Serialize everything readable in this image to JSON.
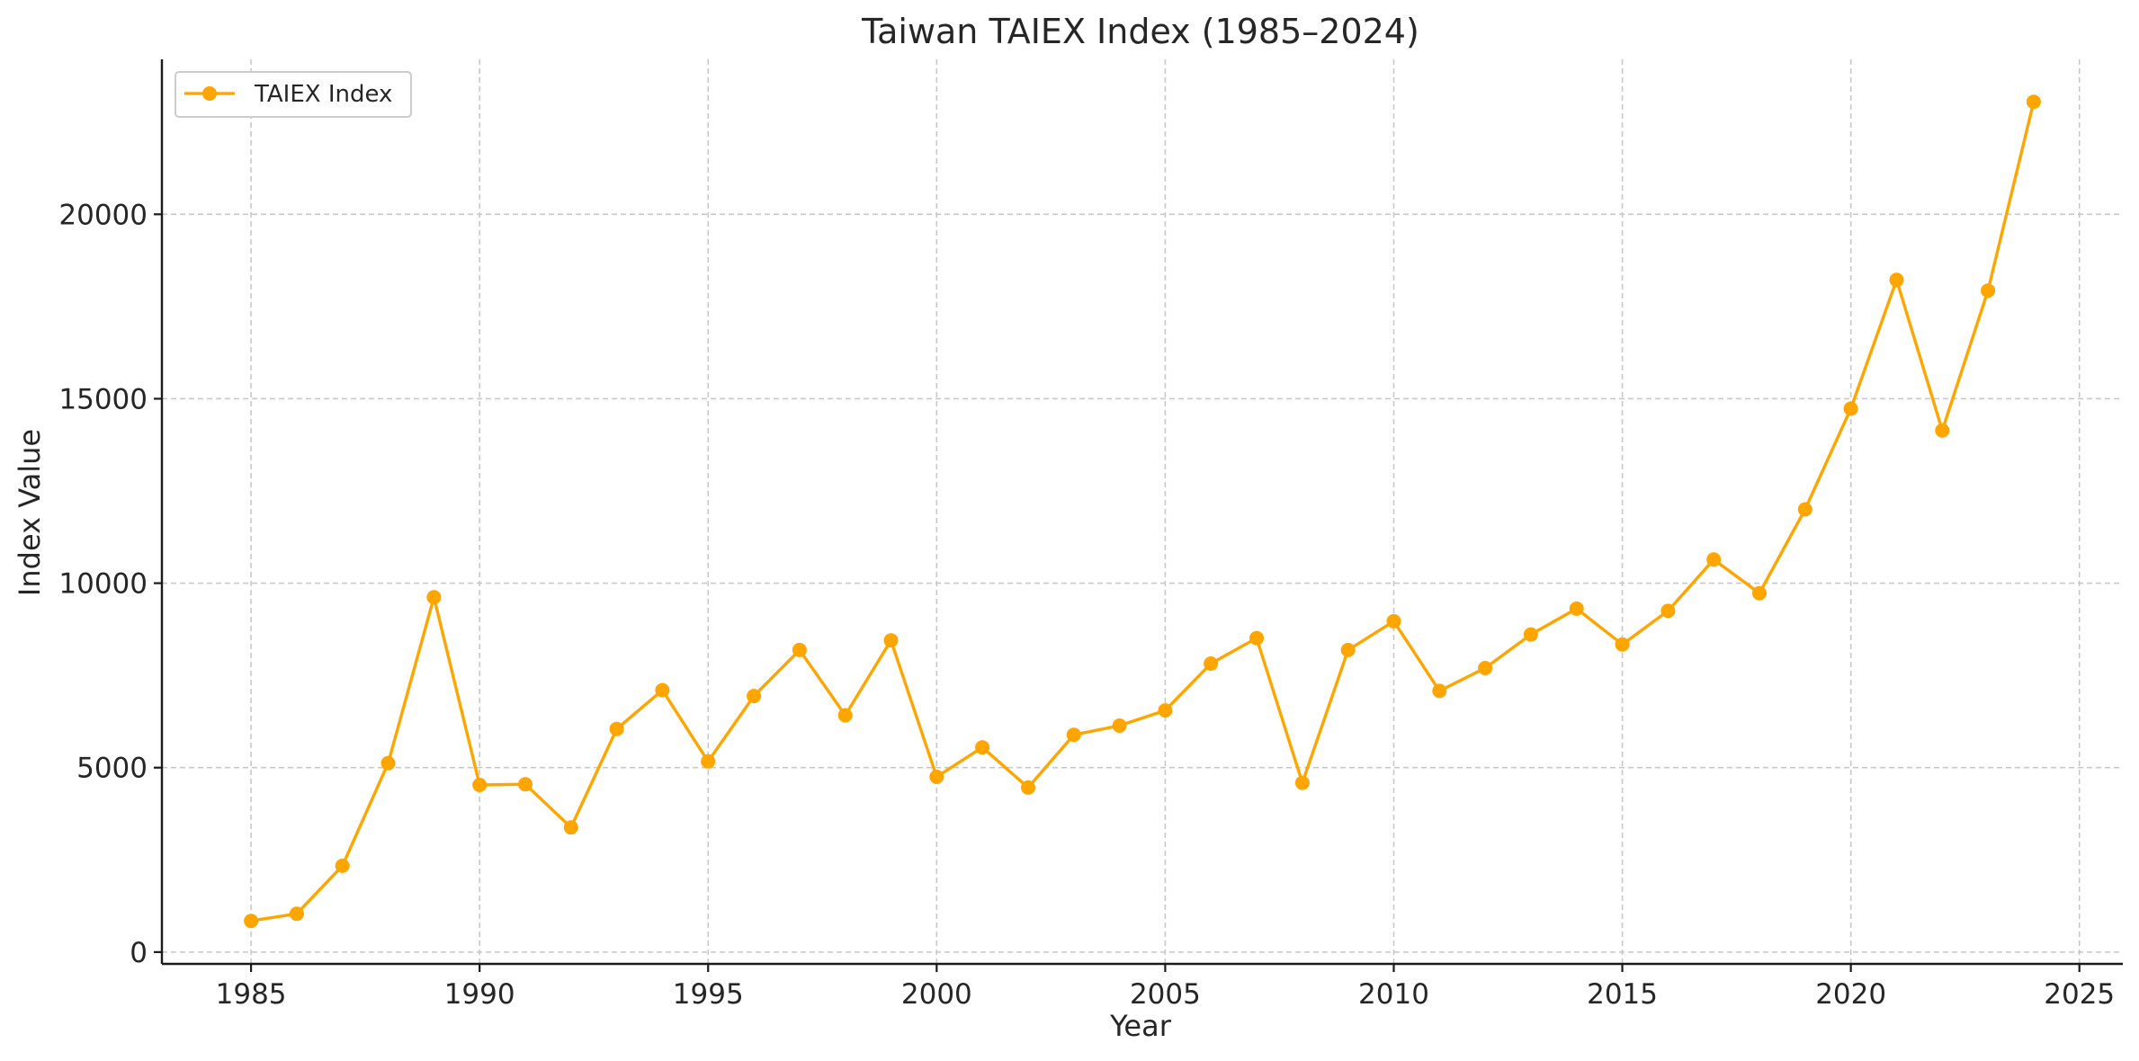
{
  "chart_data": {
    "type": "line",
    "title": "Taiwan TAIEX Index (1985–2024)",
    "xlabel": "Year",
    "ylabel": "Index Value",
    "xlim": [
      1983.05,
      2025.95
    ],
    "ylim": [
      -320,
      24200
    ],
    "x_ticks": [
      1985,
      1990,
      1995,
      2000,
      2005,
      2010,
      2015,
      2020,
      2025
    ],
    "y_ticks": [
      0,
      5000,
      10000,
      15000,
      20000
    ],
    "grid": true,
    "legend_position": "top-left",
    "color": "#ffa500",
    "series": [
      {
        "name": "TAIEX Index",
        "x": [
          1985,
          1986,
          1987,
          1988,
          1989,
          1990,
          1991,
          1992,
          1993,
          1994,
          1995,
          1996,
          1997,
          1998,
          1999,
          2000,
          2001,
          2002,
          2003,
          2004,
          2005,
          2006,
          2007,
          2008,
          2009,
          2010,
          2011,
          2012,
          2013,
          2014,
          2015,
          2016,
          2017,
          2018,
          2019,
          2020,
          2021,
          2022,
          2023,
          2024
        ],
        "y": [
          845,
          1040,
          2340,
          5120,
          9620,
          4530,
          4550,
          3380,
          6050,
          7100,
          5170,
          6940,
          8190,
          6420,
          8450,
          4750,
          5550,
          4460,
          5890,
          6140,
          6550,
          7820,
          8510,
          4590,
          8190,
          8970,
          7080,
          7700,
          8610,
          9310,
          8340,
          9250,
          10640,
          9730,
          12000,
          14730,
          18220,
          14140,
          17930,
          23050
        ]
      }
    ]
  }
}
